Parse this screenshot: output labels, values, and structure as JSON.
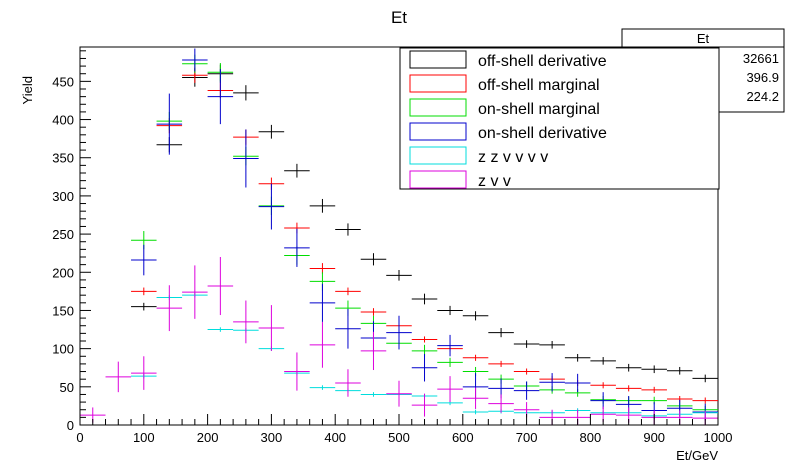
{
  "chart_data": {
    "type": "scatter",
    "title": "Et",
    "xlabel": "Et/GeV",
    "ylabel": "Yield",
    "xlim": [
      0,
      1000
    ],
    "ylim": [
      0,
      495
    ],
    "x_ticks": [
      0,
      100,
      200,
      300,
      400,
      500,
      600,
      700,
      800,
      900,
      1000
    ],
    "y_ticks": [
      0,
      50,
      100,
      150,
      200,
      250,
      300,
      350,
      400,
      450
    ],
    "x_tick_labels": [
      "0",
      "100",
      "200",
      "300",
      "400",
      "500",
      "600",
      "700",
      "800",
      "900",
      "1000"
    ],
    "y_tick_labels": [
      "0",
      "50",
      "100",
      "150",
      "200",
      "250",
      "300",
      "350",
      "400",
      "450"
    ],
    "grid": false,
    "bin_width": 40,
    "legend_position": "top-right",
    "stats_box": {
      "title": "Et",
      "values": [
        "32661",
        "396.9",
        "224.2"
      ]
    },
    "series": [
      {
        "name": "off-shell derivative",
        "color": "#000000",
        "x": [
          100,
          140,
          180,
          220,
          260,
          300,
          340,
          380,
          420,
          460,
          500,
          540,
          580,
          620,
          660,
          700,
          740,
          780,
          820,
          860,
          900,
          940,
          980
        ],
        "y": [
          155,
          367,
          455,
          460,
          435,
          384,
          333,
          287,
          256,
          217,
          196,
          165,
          150,
          143,
          121,
          106,
          105,
          88,
          84,
          75,
          73,
          71,
          61
        ],
        "err": [
          5,
          10,
          12,
          12,
          10,
          9,
          9,
          9,
          8,
          8,
          7,
          7,
          6,
          6,
          6,
          5,
          5,
          5,
          5,
          5,
          5,
          5,
          5
        ]
      },
      {
        "name": "off-shell marginal",
        "color": "#ff0000",
        "x": [
          100,
          140,
          180,
          220,
          260,
          300,
          340,
          380,
          420,
          460,
          500,
          540,
          580,
          620,
          660,
          700,
          740,
          780,
          820,
          860,
          900,
          940,
          980
        ],
        "y": [
          175,
          392,
          458,
          438,
          377,
          316,
          258,
          205,
          175,
          148,
          130,
          112,
          100,
          88,
          80,
          70,
          60,
          55,
          52,
          48,
          46,
          34,
          32
        ],
        "err": [
          5,
          10,
          10,
          10,
          10,
          8,
          7,
          7,
          5,
          5,
          5,
          4,
          4,
          4,
          4,
          4,
          4,
          4,
          4,
          4,
          4,
          4,
          4
        ]
      },
      {
        "name": "on-shell marginal",
        "color": "#00dd00",
        "x": [
          100,
          140,
          180,
          220,
          260,
          300,
          340,
          380,
          420,
          460,
          500,
          540,
          580,
          620,
          660,
          700,
          740,
          780,
          820,
          860,
          900,
          940,
          980
        ],
        "y": [
          242,
          398,
          473,
          462,
          352,
          287,
          222,
          188,
          153,
          133,
          107,
          97,
          82,
          70,
          60,
          51,
          46,
          42,
          33,
          32,
          32,
          25,
          20
        ],
        "err": [
          12,
          12,
          12,
          12,
          12,
          12,
          12,
          12,
          10,
          10,
          8,
          8,
          6,
          6,
          6,
          6,
          5,
          5,
          5,
          5,
          5,
          5,
          5
        ]
      },
      {
        "name": "on-shell derivative",
        "color": "#0000cc",
        "x": [
          100,
          140,
          180,
          220,
          260,
          300,
          340,
          380,
          420,
          460,
          500,
          540,
          580,
          620,
          660,
          700,
          740,
          780,
          820,
          860,
          900,
          940,
          980
        ],
        "y": [
          216,
          394,
          478,
          430,
          349,
          286,
          232,
          160,
          126,
          114,
          121,
          75,
          104,
          50,
          48,
          45,
          56,
          55,
          32,
          27,
          19,
          22,
          17
        ],
        "err": [
          20,
          40,
          15,
          36,
          38,
          30,
          25,
          25,
          26,
          22,
          22,
          18,
          14,
          18,
          13,
          12,
          12,
          12,
          11,
          11,
          11,
          11,
          11
        ]
      },
      {
        "name": "z z v v v v",
        "color": "#00dddd",
        "x": [
          100,
          140,
          180,
          220,
          260,
          300,
          340,
          380,
          420,
          460,
          500,
          540,
          580,
          620,
          660,
          700,
          740,
          780,
          820,
          860,
          900,
          940,
          980
        ],
        "y": [
          64,
          167,
          170,
          125,
          124,
          100,
          68,
          49,
          45,
          40,
          40,
          38,
          29,
          17,
          18,
          16,
          16,
          19,
          16,
          16,
          12,
          14,
          16
        ],
        "err": [
          3,
          3,
          3,
          3,
          3,
          3,
          3,
          3,
          3,
          3,
          3,
          3,
          3,
          3,
          3,
          3,
          3,
          3,
          3,
          3,
          3,
          3,
          3
        ]
      },
      {
        "name": "z v v",
        "color": "#dd00dd",
        "x": [
          20,
          60,
          100,
          140,
          180,
          220,
          260,
          300,
          340,
          380,
          420,
          460,
          500,
          540,
          580,
          620,
          660,
          700,
          740,
          780,
          820,
          860,
          900,
          940,
          980
        ],
        "y": [
          13,
          63,
          68,
          153,
          174,
          182,
          135,
          127,
          70,
          105,
          55,
          97,
          41,
          26,
          47,
          35,
          28,
          20,
          10,
          10,
          14,
          13,
          10,
          10,
          9
        ],
        "err": [
          10,
          20,
          22,
          30,
          35,
          38,
          28,
          30,
          25,
          30,
          18,
          25,
          17,
          15,
          17,
          14,
          12,
          10,
          10,
          10,
          10,
          10,
          9,
          9,
          9
        ]
      }
    ]
  }
}
